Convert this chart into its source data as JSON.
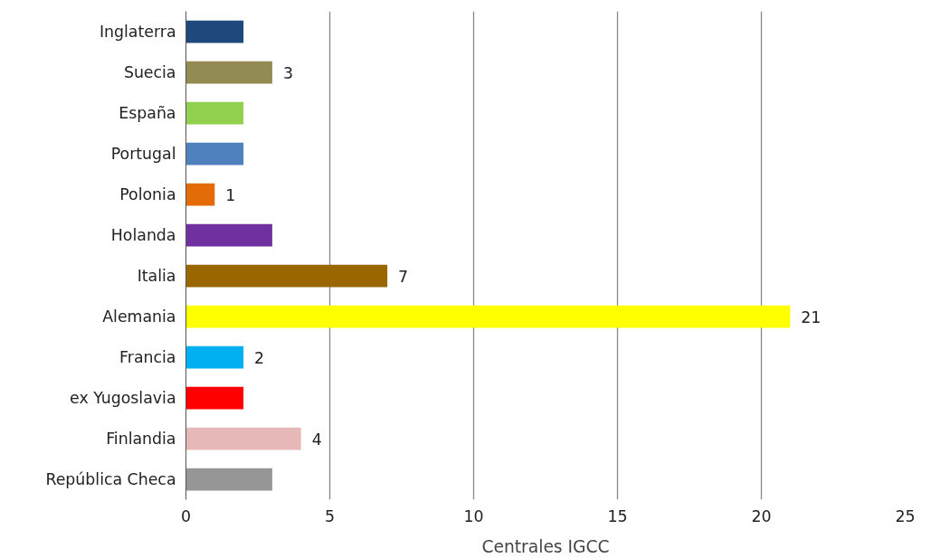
{
  "chart_data": {
    "type": "bar",
    "orientation": "horizontal",
    "xlabel": "Centrales IGCC",
    "categories": [
      "Inglaterra",
      "Suecia",
      "España",
      "Portugal",
      "Polonia",
      "Holanda",
      "Italia",
      "Alemania",
      "Francia",
      "ex Yugoslavia",
      "Finlandia",
      "República Checa"
    ],
    "values": [
      2,
      3,
      2,
      2,
      1,
      3,
      7,
      21,
      2,
      2,
      4,
      3
    ],
    "colors": [
      "#1f497d",
      "#948a54",
      "#92d050",
      "#4f81bd",
      "#e36c09",
      "#7030a0",
      "#996600",
      "#ffff00",
      "#00b0f0",
      "#ff0000",
      "#e6b9b8",
      "#969696"
    ],
    "value_labels": [
      null,
      "3",
      null,
      null,
      "1",
      null,
      "7",
      "21",
      "2",
      null,
      "4",
      null
    ],
    "xlim": [
      0,
      25
    ],
    "xticks": [
      0,
      5,
      10,
      15,
      20,
      25
    ],
    "grid": "x"
  }
}
